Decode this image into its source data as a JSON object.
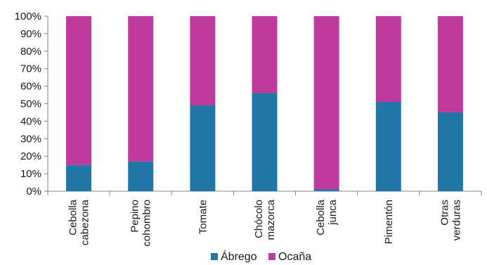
{
  "chart_data": {
    "type": "bar",
    "stacked": true,
    "percent": true,
    "title": "",
    "xlabel": "",
    "ylabel": "",
    "ylim": [
      0,
      100
    ],
    "yticks": [
      "0%",
      "10%",
      "20%",
      "30%",
      "40%",
      "50%",
      "60%",
      "70%",
      "80%",
      "90%",
      "100%"
    ],
    "categories": [
      [
        "Cebolla",
        "cabezona"
      ],
      [
        "Pepino",
        "cohombro"
      ],
      [
        "Tomate"
      ],
      [
        "Chócolo",
        "mazorca"
      ],
      [
        "Cebolla",
        "junca"
      ],
      [
        "Pimentón"
      ],
      [
        "Otras",
        "verduras"
      ]
    ],
    "series": [
      {
        "name": "Ábrego",
        "color": "#1f78a8",
        "values": [
          15,
          17,
          49,
          56,
          1,
          51,
          45
        ]
      },
      {
        "name": "Ocaña",
        "color": "#c0399c",
        "values": [
          85,
          83,
          51,
          44,
          99,
          49,
          55
        ]
      }
    ],
    "grid": false,
    "legend_position": "bottom"
  }
}
